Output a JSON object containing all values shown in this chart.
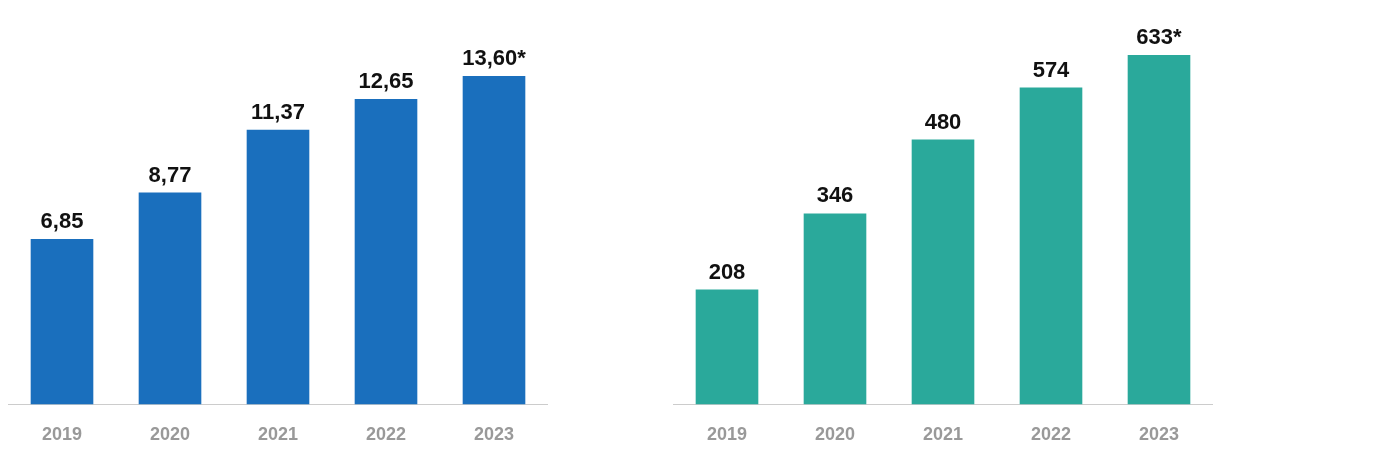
{
  "chart_data": [
    {
      "type": "bar",
      "categories": [
        "2019",
        "2020",
        "2021",
        "2022",
        "2023"
      ],
      "values": [
        6.85,
        8.77,
        11.37,
        12.65,
        13.6
      ],
      "color": "#1a6fbd",
      "value_labels": [
        "6,85",
        "8,77",
        "11,37",
        "12,65",
        "13,60*"
      ]
    },
    {
      "type": "bar",
      "categories": [
        "2019",
        "2020",
        "2021",
        "2022",
        "2023"
      ],
      "values": [
        208,
        346,
        480,
        574,
        633
      ],
      "color": "#2aa99b",
      "value_labels": [
        "208",
        "346",
        "480",
        "574",
        "633*"
      ]
    }
  ]
}
